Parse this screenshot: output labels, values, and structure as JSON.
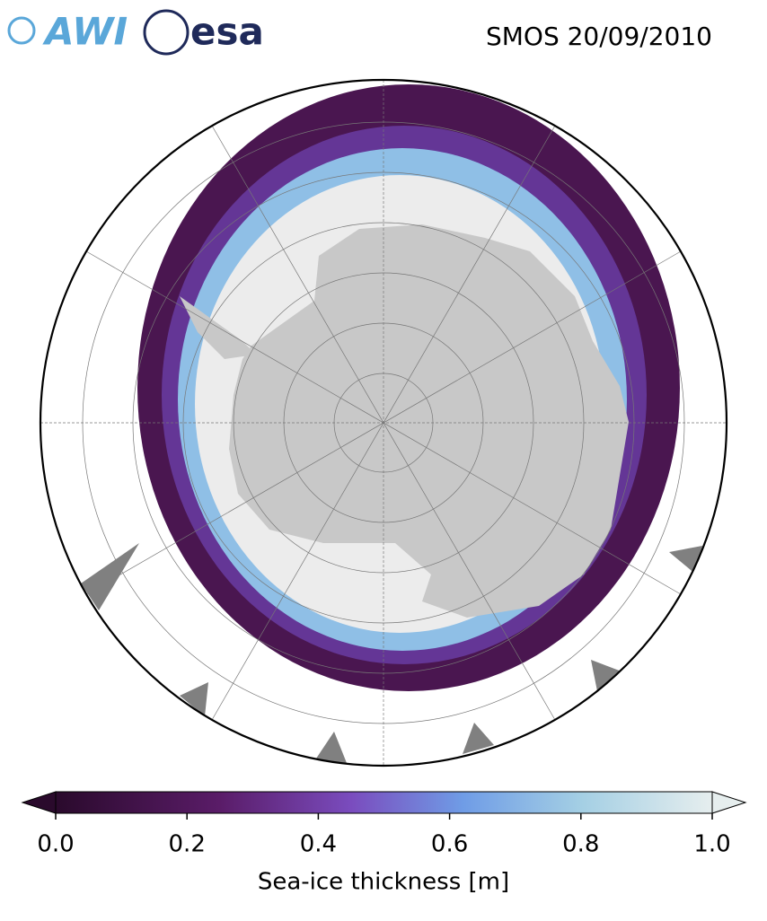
{
  "logos": {
    "awi": "AWI",
    "esa": "esa"
  },
  "map": {
    "title": "SMOS 20/09/2010",
    "colorbar": {
      "label": "Sea-ice thickness [m]",
      "lim": [
        0,
        1
      ],
      "ticks": [
        {
          "value": 0,
          "label": "0.0"
        },
        {
          "value": 0.2,
          "label": "0.2"
        },
        {
          "value": 0.4,
          "label": "0.4"
        },
        {
          "value": 0.6,
          "label": "0.6"
        },
        {
          "value": 0.8,
          "label": "0.8"
        },
        {
          "value": 1,
          "label": "1.0"
        }
      ]
    }
  }
}
